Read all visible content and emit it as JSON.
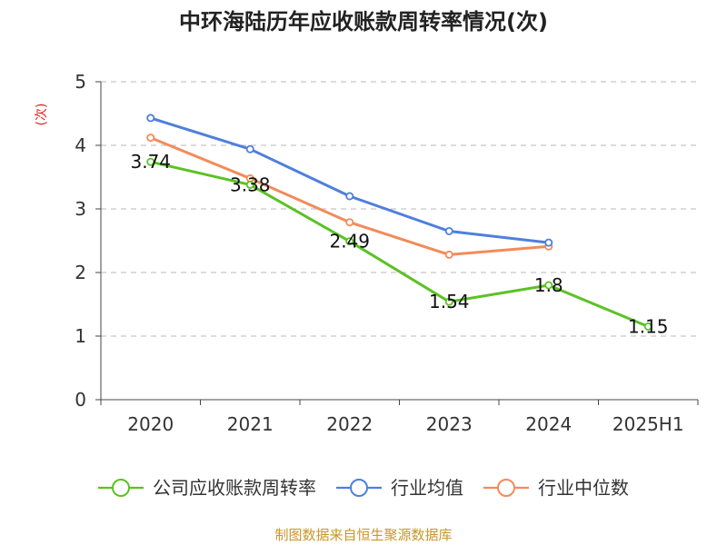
{
  "chart_data": {
    "type": "line",
    "title": "中环海陆历年应收账款周转率情况(次)",
    "ylabel": "(次)",
    "xlabel": "",
    "categories": [
      "2020",
      "2021",
      "2022",
      "2023",
      "2024",
      "2025H1"
    ],
    "ylim": [
      0,
      5
    ],
    "yticks": [
      0,
      1,
      2,
      3,
      4,
      5
    ],
    "grid": true,
    "legend_position": "bottom",
    "series": [
      {
        "name": "公司应收账款周转率",
        "color": "#5bc225",
        "values": [
          3.74,
          3.38,
          2.49,
          1.54,
          1.8,
          1.15
        ],
        "labels": [
          "3.74",
          "3.38",
          "2.49",
          "1.54",
          "1.8",
          "1.15"
        ]
      },
      {
        "name": "行业均值",
        "color": "#4f7fdc",
        "values": [
          4.43,
          3.94,
          3.2,
          2.65,
          2.47,
          null
        ]
      },
      {
        "name": "行业中位数",
        "color": "#f28b5a",
        "values": [
          4.12,
          3.48,
          2.79,
          2.28,
          2.41,
          null
        ]
      }
    ]
  },
  "footer": {
    "source": "制图数据来自恒生聚源数据库"
  }
}
